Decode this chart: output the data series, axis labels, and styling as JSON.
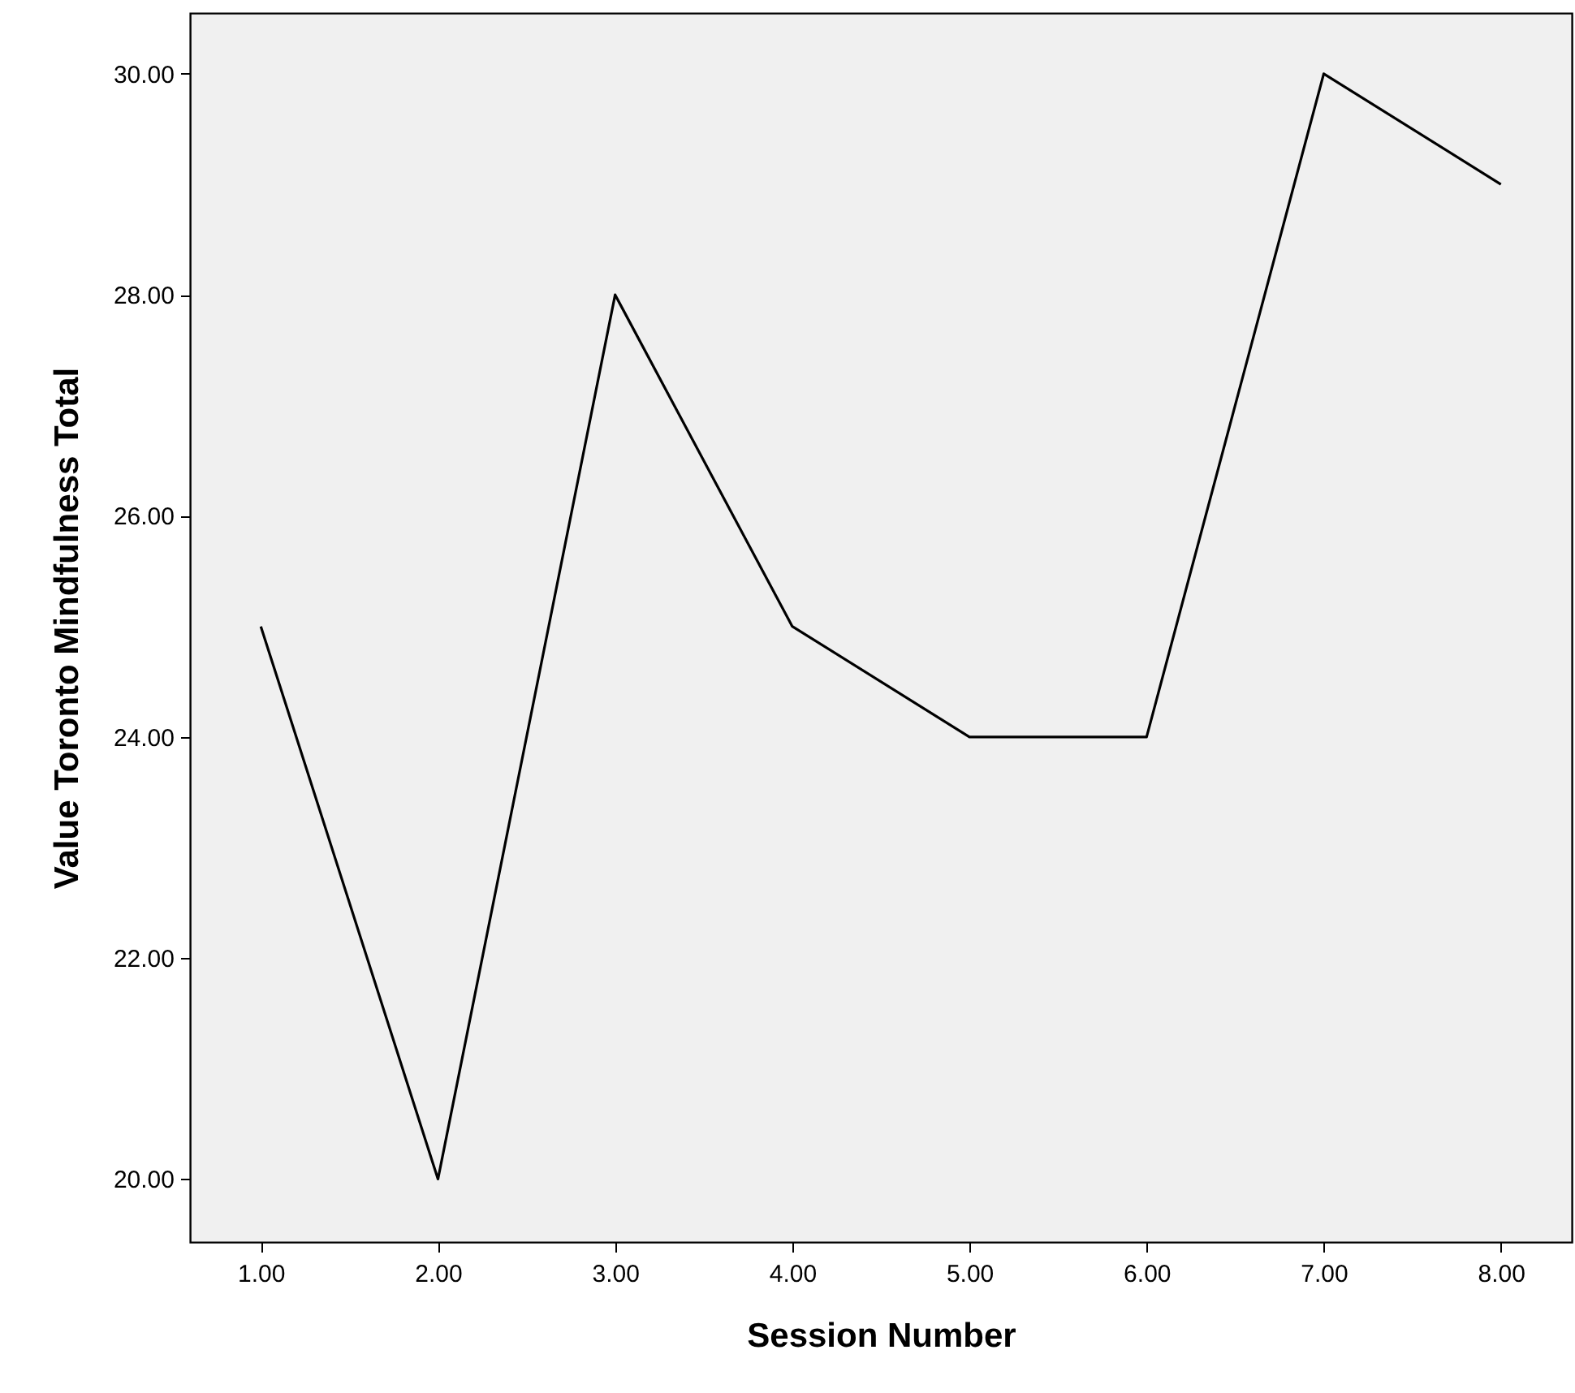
{
  "chart_data": {
    "type": "line",
    "xlabel": "Session Number",
    "ylabel": "Value Toronto Mindfulness Total",
    "categories": [
      "1.00",
      "2.00",
      "3.00",
      "4.00",
      "5.00",
      "6.00",
      "7.00",
      "8.00"
    ],
    "values": [
      25,
      20,
      28,
      25,
      24,
      24,
      30,
      29
    ],
    "color": "#000000",
    "ylim": [
      19.43,
      30.55
    ],
    "yticks": [
      {
        "value": 20,
        "label": "20.00"
      },
      {
        "value": 22,
        "label": "22.00"
      },
      {
        "value": 24,
        "label": "24.00"
      },
      {
        "value": 26,
        "label": "26.00"
      },
      {
        "value": 28,
        "label": "28.00"
      },
      {
        "value": 30,
        "label": "30.00"
      }
    ]
  }
}
